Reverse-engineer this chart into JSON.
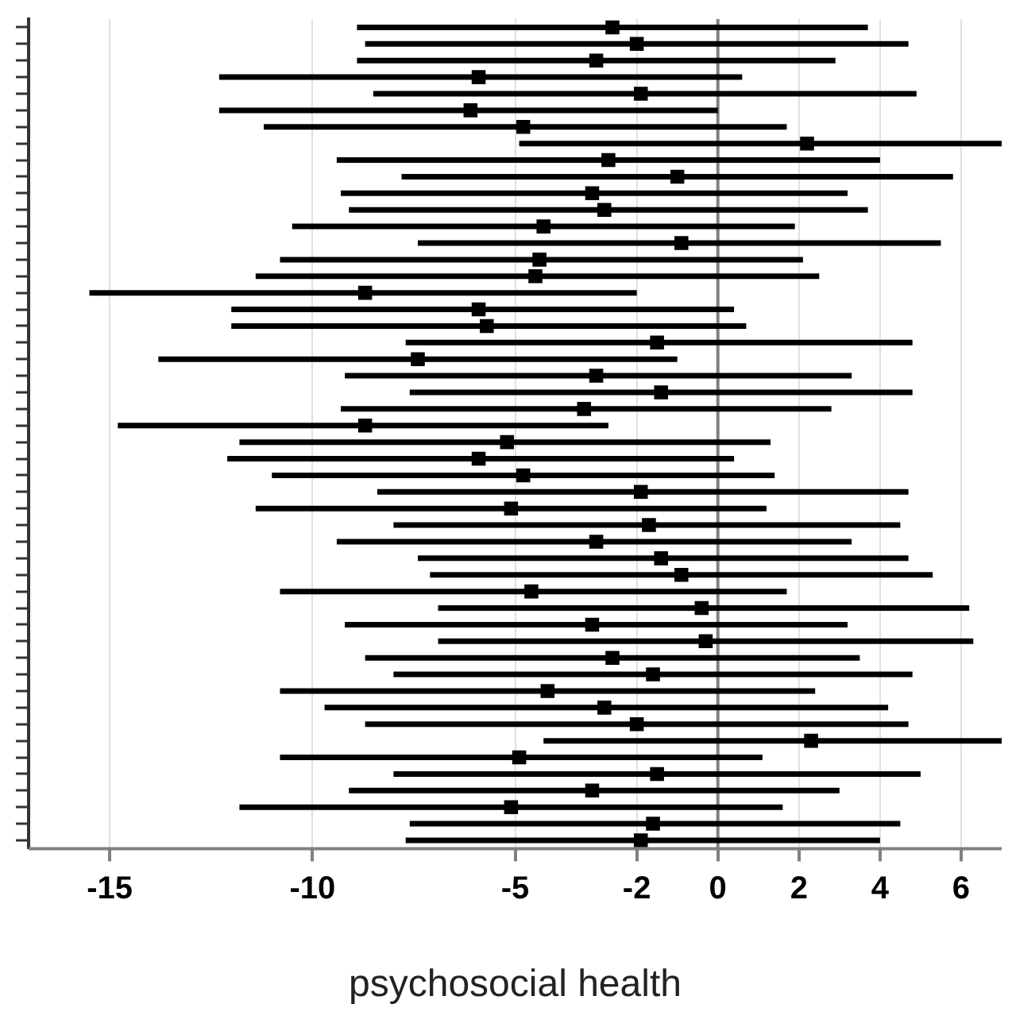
{
  "chart_data": {
    "type": "scatter",
    "orientation": "horizontal",
    "xlabel": "psychosocial health",
    "marker": "square",
    "grid": "x",
    "tick_labels": "x",
    "categories": [
      null,
      null,
      null,
      null,
      null,
      null,
      null,
      null,
      null,
      null,
      null,
      null,
      null,
      null,
      null,
      null,
      null,
      null,
      null,
      null,
      null,
      null,
      null,
      null,
      null,
      null,
      null,
      null,
      null,
      null,
      null,
      null,
      null,
      null,
      null,
      null,
      null,
      null,
      null,
      null,
      null,
      null,
      null,
      null,
      null,
      null,
      null,
      null,
      null,
      null
    ],
    "series": [
      {
        "color": "#000000",
        "values": [
          -2.6,
          -2.0,
          -3.0,
          -5.9,
          -1.9,
          -6.1,
          -4.8,
          2.2,
          -2.7,
          -1.0,
          -3.1,
          -2.8,
          -4.3,
          -0.9,
          -4.4,
          -4.5,
          -8.7,
          -5.9,
          -5.7,
          -1.5,
          -7.4,
          -3.0,
          -1.4,
          -3.3,
          -8.7,
          -5.2,
          -5.9,
          -4.8,
          -1.9,
          -5.1,
          -1.7,
          -3.0,
          -1.4,
          -0.9,
          -4.6,
          -0.4,
          -3.1,
          -0.3,
          -2.6,
          -1.6,
          -4.2,
          -2.8,
          -2.0,
          2.3,
          -4.9,
          -1.5,
          -3.1,
          -5.1,
          -1.6,
          -1.9
        ],
        "errors": [
          [
            -8.9,
            3.7
          ],
          [
            -8.7,
            4.7
          ],
          [
            -8.9,
            2.9
          ],
          [
            -12.3,
            0.6
          ],
          [
            -8.5,
            4.9
          ],
          [
            -12.3,
            0.0
          ],
          [
            -11.2,
            1.7
          ],
          [
            -4.9,
            7
          ],
          [
            -9.4,
            4.0
          ],
          [
            -7.8,
            5.8
          ],
          [
            -9.3,
            3.2
          ],
          [
            -9.1,
            3.7
          ],
          [
            -10.5,
            1.9
          ],
          [
            -7.4,
            5.5
          ],
          [
            -10.8,
            2.1
          ],
          [
            -11.4,
            2.5
          ],
          [
            -15.5,
            -2.0
          ],
          [
            -12.0,
            0.4
          ],
          [
            -12.0,
            0.7
          ],
          [
            -7.7,
            4.8
          ],
          [
            -13.8,
            -1.0
          ],
          [
            -9.2,
            3.3
          ],
          [
            -7.6,
            4.8
          ],
          [
            -9.3,
            2.8
          ],
          [
            -14.8,
            -2.7
          ],
          [
            -11.8,
            1.3
          ],
          [
            -12.1,
            0.4
          ],
          [
            -11.0,
            1.4
          ],
          [
            -8.4,
            4.7
          ],
          [
            -11.4,
            1.2
          ],
          [
            -8.0,
            4.5
          ],
          [
            -9.4,
            3.3
          ],
          [
            -7.4,
            4.7
          ],
          [
            -7.1,
            5.3
          ],
          [
            -10.8,
            1.7
          ],
          [
            -6.9,
            6.2
          ],
          [
            -9.2,
            3.2
          ],
          [
            -6.9,
            6.3
          ],
          [
            -8.7,
            3.5
          ],
          [
            -8.0,
            4.8
          ],
          [
            -10.8,
            2.4
          ],
          [
            -9.7,
            4.2
          ],
          [
            -8.7,
            4.7
          ],
          [
            -4.3,
            7
          ],
          [
            -10.8,
            1.1
          ],
          [
            -8.0,
            5.0
          ],
          [
            -9.1,
            3.0
          ],
          [
            -11.8,
            1.6
          ],
          [
            -7.6,
            4.5
          ],
          [
            -7.7,
            4.0
          ]
        ]
      }
    ],
    "xlim": [
      -17,
      7
    ],
    "xticks": [
      -15,
      -10,
      -5,
      -2,
      0,
      2,
      4,
      6
    ],
    "ref_lines": [
      {
        "axis": "x",
        "value": 0,
        "color": "#808080"
      }
    ]
  }
}
